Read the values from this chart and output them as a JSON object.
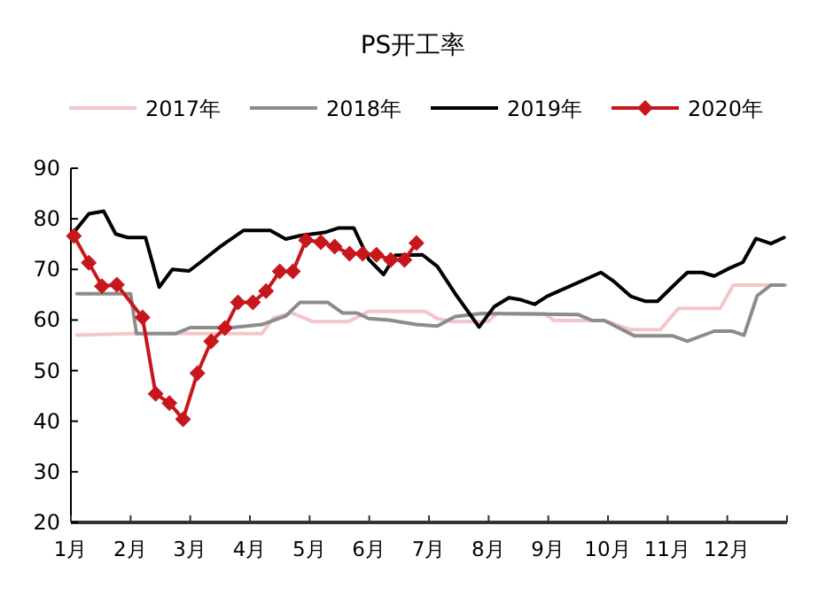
{
  "chart_data": {
    "type": "line",
    "title": "PS开工率",
    "xlim": [
      1,
      13
    ],
    "xticks": [
      {
        "value": 1,
        "label": "1月"
      },
      {
        "value": 2,
        "label": "2月"
      },
      {
        "value": 3,
        "label": "3月"
      },
      {
        "value": 4,
        "label": "4月"
      },
      {
        "value": 5,
        "label": "5月"
      },
      {
        "value": 6,
        "label": "6月"
      },
      {
        "value": 7,
        "label": "7月"
      },
      {
        "value": 8,
        "label": "8月"
      },
      {
        "value": 9,
        "label": "9月"
      },
      {
        "value": 10,
        "label": "10月"
      },
      {
        "value": 11,
        "label": "11月"
      },
      {
        "value": 12,
        "label": "12月"
      },
      {
        "value": 13,
        "label": null
      }
    ],
    "ylim": [
      20,
      90
    ],
    "yticks": [
      20,
      30,
      40,
      50,
      60,
      70,
      80,
      90
    ],
    "grid": false,
    "legend": "top",
    "series": [
      {
        "name": "2017年",
        "color": "#f4c6ca",
        "marker": "none",
        "x": [
          1.1,
          2.0,
          4.2,
          4.4,
          4.7,
          5.05,
          5.65,
          5.99,
          6.94,
          7.14,
          7.4,
          7.99,
          8.14,
          8.94,
          9.09,
          9.94,
          10.38,
          10.88,
          11.18,
          11.88,
          12.1,
          12.98
        ],
        "values": [
          57,
          57.3,
          57.3,
          60.5,
          61.4,
          59.7,
          59.7,
          61.7,
          61.7,
          60.3,
          59.7,
          59.7,
          61.3,
          61.3,
          59.9,
          59.9,
          58.1,
          58.1,
          62.3,
          62.3,
          66.9,
          66.9
        ]
      },
      {
        "name": "2018年",
        "color": "#8c8c8c",
        "marker": "none",
        "x": [
          1.1,
          2.0,
          2.1,
          2.75,
          3.0,
          3.7,
          4.2,
          4.6,
          4.84,
          5.3,
          5.55,
          5.79,
          5.99,
          6.33,
          6.79,
          7.14,
          7.44,
          7.89,
          9.49,
          9.74,
          9.94,
          10.44,
          11.08,
          11.33,
          11.78,
          12.08,
          12.28,
          12.5,
          12.73,
          12.95
        ],
        "values": [
          65.2,
          65.2,
          57.3,
          57.3,
          58.5,
          58.5,
          59.1,
          60.8,
          63.5,
          63.5,
          61.4,
          61.4,
          60.3,
          60.0,
          59.1,
          58.8,
          60.7,
          61.3,
          61.1,
          59.9,
          59.9,
          56.9,
          56.9,
          55.8,
          57.8,
          57.8,
          57.0,
          64.8,
          66.9,
          66.9
        ]
      },
      {
        "name": "2019年",
        "color": "#000000",
        "marker": "none",
        "x": [
          1.0,
          1.3,
          1.55,
          1.75,
          1.95,
          2.25,
          2.48,
          2.7,
          2.98,
          3.18,
          3.5,
          3.89,
          4.34,
          4.6,
          4.85,
          5.25,
          5.49,
          5.74,
          5.99,
          6.24,
          6.44,
          6.89,
          7.14,
          7.44,
          7.84,
          8.09,
          8.34,
          8.54,
          8.77,
          8.98,
          9.88,
          10.08,
          10.38,
          10.63,
          10.83,
          11.08,
          11.33,
          11.58,
          11.78,
          12.03,
          12.26,
          12.48,
          12.73,
          12.95
        ],
        "values": [
          76.6,
          81,
          81.5,
          77,
          76.3,
          76.3,
          66.5,
          70,
          69.7,
          71.5,
          74.5,
          77.7,
          77.7,
          76,
          76.7,
          77.3,
          78.2,
          78.2,
          72,
          69,
          72.8,
          72.9,
          70.6,
          65.2,
          58.6,
          62.6,
          64.4,
          64,
          63.1,
          64.7,
          69.4,
          67.8,
          64.7,
          63.7,
          63.7,
          66.6,
          69.4,
          69.4,
          68.7,
          70.2,
          71.4,
          76.1,
          75.1,
          76.3
        ]
      },
      {
        "name": "2020年",
        "color": "#c8161d",
        "marker": "diamond",
        "x": [
          1.05,
          1.3,
          1.52,
          1.77,
          2.2,
          2.42,
          2.65,
          2.88,
          3.12,
          3.35,
          3.58,
          3.8,
          4.05,
          4.27,
          4.5,
          4.72,
          4.94,
          5.19,
          5.42,
          5.67,
          5.89,
          6.12,
          6.36,
          6.59,
          6.79
        ],
        "values": [
          76.6,
          71.3,
          66.7,
          67.0,
          60.5,
          45.4,
          43.6,
          40.4,
          49.5,
          55.8,
          58.4,
          63.5,
          63.5,
          65.7,
          69.6,
          69.6,
          75.8,
          75.4,
          74.5,
          73.1,
          73.1,
          72.9,
          71.9,
          71.9,
          75.2
        ]
      }
    ]
  }
}
